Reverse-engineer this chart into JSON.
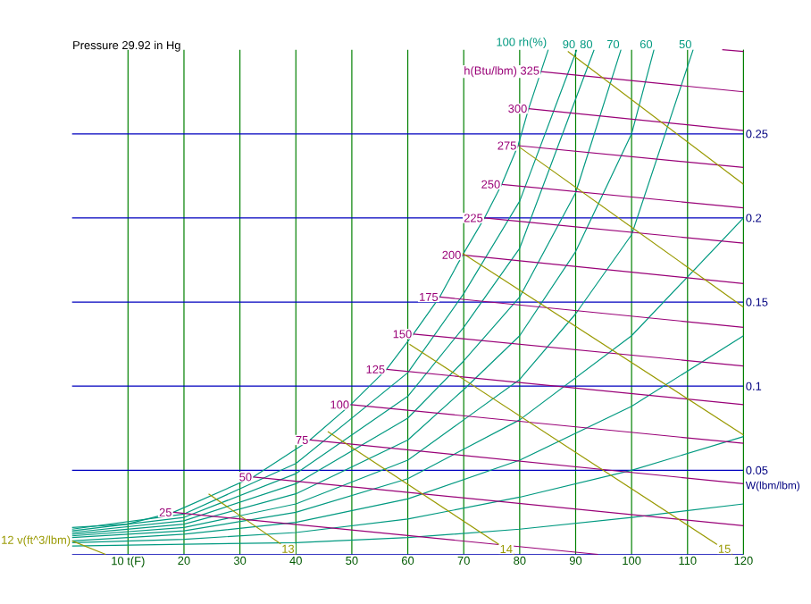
{
  "chart_data": {
    "type": "line",
    "title": "Pressure 29.92 in Hg",
    "ylabel": "W(lbm/lbm)",
    "xlim": [
      0,
      120
    ],
    "ylim": [
      0,
      0.3
    ],
    "xticks": [
      {
        "value": 10,
        "label": "10 t(F)"
      },
      20,
      30,
      40,
      50,
      60,
      70,
      80,
      90,
      100,
      110,
      120
    ],
    "yticks": [
      0.05,
      0.1,
      0.15,
      0.2,
      0.25
    ],
    "grid": true,
    "series": [
      {
        "name": "100 rh(%)",
        "color": "#009980",
        "x": [
          85.1,
          83.8,
          81.6,
          79.7,
          76.8,
          73.7,
          69.8,
          65.7,
          61,
          56.2,
          49.8,
          42.5,
          32.4,
          18.1,
          9.8,
          0
        ],
        "values": [
          0.3,
          0.287,
          0.265,
          0.243,
          0.22,
          0.2,
          0.178,
          0.153,
          0.131,
          0.11,
          0.089,
          0.068,
          0.046,
          0.025,
          0.018,
          0.016
        ]
      },
      {
        "name": "90",
        "color": "#009980",
        "x": [
          90.2,
          80,
          70,
          60,
          40,
          20,
          0
        ],
        "values": [
          0.3,
          0.21,
          0.155,
          0.108,
          0.054,
          0.024,
          0.015
        ]
      },
      {
        "name": "80",
        "color": "#009980",
        "x": [
          93.3,
          80,
          70,
          60,
          40,
          20,
          0
        ],
        "values": [
          0.3,
          0.182,
          0.135,
          0.094,
          0.048,
          0.022,
          0.014
        ]
      },
      {
        "name": "70",
        "color": "#009980",
        "x": [
          98.1,
          90,
          80,
          70,
          60,
          40,
          20,
          0
        ],
        "values": [
          0.3,
          0.215,
          0.153,
          0.115,
          0.081,
          0.042,
          0.02,
          0.013
        ]
      },
      {
        "name": "60",
        "color": "#009980",
        "x": [
          104,
          100,
          90,
          80,
          70,
          60,
          40,
          20,
          0
        ],
        "values": [
          0.3,
          0.25,
          0.18,
          0.13,
          0.098,
          0.068,
          0.036,
          0.018,
          0.012
        ]
      },
      {
        "name": "50",
        "color": "#009980",
        "x": [
          111,
          100,
          90,
          80,
          70,
          60,
          40,
          20,
          0
        ],
        "values": [
          0.3,
          0.19,
          0.143,
          0.104,
          0.08,
          0.056,
          0.03,
          0.016,
          0.011
        ]
      },
      {
        "color": "#009980",
        "x": [
          120,
          100,
          80,
          60,
          40,
          20,
          0
        ],
        "values": [
          0.2,
          0.13,
          0.08,
          0.045,
          0.025,
          0.014,
          0.01
        ]
      },
      {
        "color": "#009980",
        "x": [
          120,
          100,
          80,
          60,
          40,
          20,
          0
        ],
        "values": [
          0.13,
          0.088,
          0.056,
          0.033,
          0.019,
          0.012,
          0.008
        ]
      },
      {
        "color": "#009980",
        "x": [
          120,
          100,
          80,
          60,
          40,
          20,
          0
        ],
        "values": [
          0.07,
          0.05,
          0.034,
          0.021,
          0.013,
          0.009,
          0.007
        ]
      },
      {
        "color": "#009980",
        "x": [
          120,
          100,
          80,
          60,
          40,
          20,
          0
        ],
        "values": [
          0.03,
          0.022,
          0.015,
          0.01,
          0.007,
          0.006,
          0.005
        ]
      },
      {
        "name": "25",
        "color": "#990077",
        "x": [
          18.1,
          94
        ],
        "values": [
          0.025,
          0
        ]
      },
      {
        "name": "50",
        "color": "#990077",
        "x": [
          32.4,
          120
        ],
        "values": [
          0.046,
          0.017
        ]
      },
      {
        "name": "75",
        "color": "#990077",
        "x": [
          42.5,
          120
        ],
        "values": [
          0.068,
          0.042
        ]
      },
      {
        "name": "100",
        "color": "#990077",
        "x": [
          49.8,
          120
        ],
        "values": [
          0.089,
          0.066
        ]
      },
      {
        "name": "125",
        "color": "#990077",
        "x": [
          56.2,
          120
        ],
        "values": [
          0.11,
          0.089
        ]
      },
      {
        "name": "150",
        "color": "#990077",
        "x": [
          61,
          120
        ],
        "values": [
          0.131,
          0.112
        ]
      },
      {
        "name": "175",
        "color": "#990077",
        "x": [
          65.7,
          120
        ],
        "values": [
          0.153,
          0.135
        ]
      },
      {
        "name": "200",
        "color": "#990077",
        "x": [
          69.8,
          120
        ],
        "values": [
          0.178,
          0.161
        ]
      },
      {
        "name": "225",
        "color": "#990077",
        "x": [
          73.7,
          120
        ],
        "values": [
          0.2,
          0.185
        ]
      },
      {
        "name": "250",
        "color": "#990077",
        "x": [
          76.8,
          120
        ],
        "values": [
          0.22,
          0.206
        ]
      },
      {
        "name": "275",
        "color": "#990077",
        "x": [
          79.7,
          120
        ],
        "values": [
          0.243,
          0.23
        ]
      },
      {
        "name": "300",
        "color": "#990077",
        "x": [
          81.6,
          120
        ],
        "values": [
          0.265,
          0.252
        ]
      },
      {
        "name": "h(Btu/lbm) 325",
        "color": "#990077",
        "x": [
          83.8,
          120
        ],
        "values": [
          0.287,
          0.275
        ]
      },
      {
        "color": "#990077",
        "x": [
          116.2,
          120
        ],
        "values": [
          0.3,
          0.299
        ]
      },
      {
        "name": "12 v(ft^3/lbm)",
        "color": "#999900",
        "x": [
          0,
          6
        ],
        "values": [
          0.008,
          0
        ]
      },
      {
        "name": "13",
        "color": "#999900",
        "x": [
          40,
          24.4
        ],
        "values": [
          0,
          0.036
        ]
      },
      {
        "name": "14",
        "color": "#999900",
        "x": [
          79,
          45.7
        ],
        "values": [
          0,
          0.073
        ]
      },
      {
        "name": "15",
        "color": "#999900",
        "x": [
          118,
          60.3
        ],
        "values": [
          0,
          0.125
        ]
      },
      {
        "color": "#999900",
        "x": [
          120,
          69.8
        ],
        "values": [
          0.071,
          0.179
        ]
      },
      {
        "color": "#999900",
        "x": [
          120,
          80
        ],
        "values": [
          0.147,
          0.242
        ]
      },
      {
        "color": "#999900",
        "x": [
          120,
          88.6
        ],
        "values": [
          0.22,
          0.299
        ]
      }
    ]
  }
}
